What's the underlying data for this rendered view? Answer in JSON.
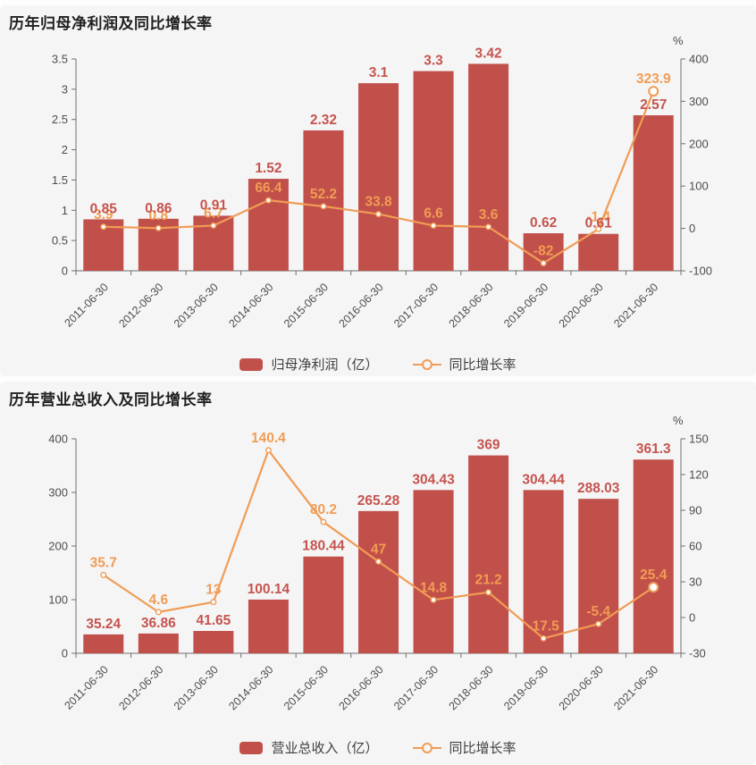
{
  "colors": {
    "panel_bg": "#f5f5f6",
    "bar": "#c1504b",
    "bar_label": "#c5544e",
    "line": "#f09c55",
    "line_label": "#f19c53",
    "axis": "#6f6f6f",
    "tick_text": "#4d4d4d",
    "x_text": "#4d4d4d"
  },
  "chart_data": [
    {
      "type": "bar+line",
      "title": "历年归母净利润及同比增长率",
      "categories": [
        "2011-06-30",
        "2012-06-30",
        "2013-06-30",
        "2014-06-30",
        "2015-06-30",
        "2016-06-30",
        "2017-06-30",
        "2018-06-30",
        "2019-06-30",
        "2020-06-30",
        "2021-06-30"
      ],
      "series": [
        {
          "name": "归母净利润（亿）",
          "type": "bar",
          "axis": "left",
          "values": [
            0.85,
            0.86,
            0.91,
            1.52,
            2.32,
            3.1,
            3.3,
            3.42,
            0.62,
            0.61,
            2.57
          ],
          "labels": [
            "0.85",
            "0.86",
            "0.91",
            "1.52",
            "2.32",
            "3.1",
            "3.3",
            "3.42",
            "0.62",
            "0.61",
            "2.57"
          ]
        },
        {
          "name": "同比增长率",
          "type": "line",
          "axis": "right",
          "values": [
            3.9,
            0.8,
            6.7,
            66.4,
            52.2,
            33.8,
            6.6,
            3.6,
            -82,
            -1.4,
            323.9
          ],
          "labels": [
            "3.9",
            "0.8",
            "6.7",
            "66.4",
            "52.2",
            "33.8",
            "6.6",
            "3.6",
            "-82",
            "-1.4",
            "323.9"
          ]
        }
      ],
      "left_axis": {
        "min": 0,
        "max": 3.5,
        "ticks": [
          "0",
          "0.5",
          "1",
          "1.5",
          "2",
          "2.5",
          "3",
          "3.5"
        ]
      },
      "right_axis": {
        "min": -100,
        "max": 400,
        "ticks": [
          "-100",
          "0",
          "100",
          "200",
          "300",
          "400"
        ],
        "unit": "%"
      },
      "legend": [
        "归母净利润（亿）",
        "同比增长率"
      ],
      "grid": "off",
      "legend_position": "bottom"
    },
    {
      "type": "bar+line",
      "title": "历年营业总收入及同比增长率",
      "categories": [
        "2011-06-30",
        "2012-06-30",
        "2013-06-30",
        "2014-06-30",
        "2015-06-30",
        "2016-06-30",
        "2017-06-30",
        "2018-06-30",
        "2019-06-30",
        "2020-06-30",
        "2021-06-30"
      ],
      "series": [
        {
          "name": "营业总收入（亿）",
          "type": "bar",
          "axis": "left",
          "values": [
            35.24,
            36.86,
            41.65,
            100.14,
            180.44,
            265.28,
            304.43,
            369,
            304.44,
            288.03,
            361.3
          ],
          "labels": [
            "35.24",
            "36.86",
            "41.65",
            "100.14",
            "180.44",
            "265.28",
            "304.43",
            "369",
            "304.44",
            "288.03",
            "361.3"
          ]
        },
        {
          "name": "同比增长率",
          "type": "line",
          "axis": "right",
          "values": [
            35.7,
            4.6,
            13,
            140.4,
            80.2,
            47,
            14.8,
            21.2,
            -17.5,
            -5.4,
            25.4
          ],
          "labels": [
            "35.7",
            "4.6",
            "13",
            "140.4",
            "80.2",
            "47",
            "14.8",
            "21.2",
            "-17.5",
            "-5.4",
            "25.4"
          ]
        }
      ],
      "left_axis": {
        "min": 0,
        "max": 400,
        "ticks": [
          "0",
          "100",
          "200",
          "300",
          "400"
        ]
      },
      "right_axis": {
        "min": -30,
        "max": 150,
        "ticks": [
          "-30",
          "0",
          "30",
          "60",
          "90",
          "120",
          "150"
        ],
        "unit": "%"
      },
      "legend": [
        "营业总收入（亿）",
        "同比增长率"
      ],
      "grid": "off",
      "legend_position": "bottom"
    }
  ]
}
